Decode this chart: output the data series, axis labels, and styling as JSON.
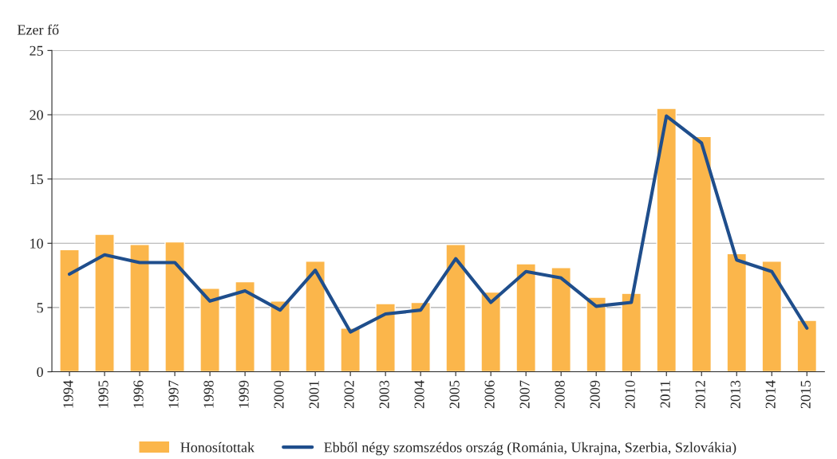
{
  "chart_data": {
    "type": "bar",
    "ylabel": "Ezer fő",
    "categories": [
      "1994",
      "1995",
      "1996",
      "1997",
      "1998",
      "1999",
      "2000",
      "2001",
      "2002",
      "2003",
      "2004",
      "2005",
      "2006",
      "2007",
      "2008",
      "2009",
      "2010",
      "2011",
      "2012",
      "2013",
      "2014",
      "2015"
    ],
    "series": [
      {
        "name": "Honosítottak",
        "color": "#fbb64b",
        "values": [
          9.5,
          10.7,
          9.9,
          10.1,
          6.5,
          7.0,
          5.5,
          8.6,
          3.4,
          5.3,
          5.4,
          9.9,
          6.2,
          8.4,
          8.1,
          5.8,
          6.1,
          20.5,
          18.3,
          9.2,
          8.6,
          4.0
        ]
      },
      {
        "name": "Ebből négy szomszédos ország (Románia, Ukrajna, Szerbia, Szlovákia)",
        "type": "line",
        "color": "#1f4e8c",
        "values": [
          7.6,
          9.1,
          8.5,
          8.5,
          5.5,
          6.3,
          4.8,
          7.9,
          3.1,
          4.5,
          4.8,
          8.8,
          5.4,
          7.8,
          7.3,
          5.1,
          5.4,
          19.9,
          17.8,
          8.7,
          7.8,
          3.4
        ]
      }
    ],
    "ylim": [
      0,
      25
    ],
    "yticks": [
      0,
      5,
      10,
      15,
      20,
      25
    ],
    "grid": "y",
    "legend": "bottom",
    "marker": "none",
    "line_style": "solid"
  }
}
